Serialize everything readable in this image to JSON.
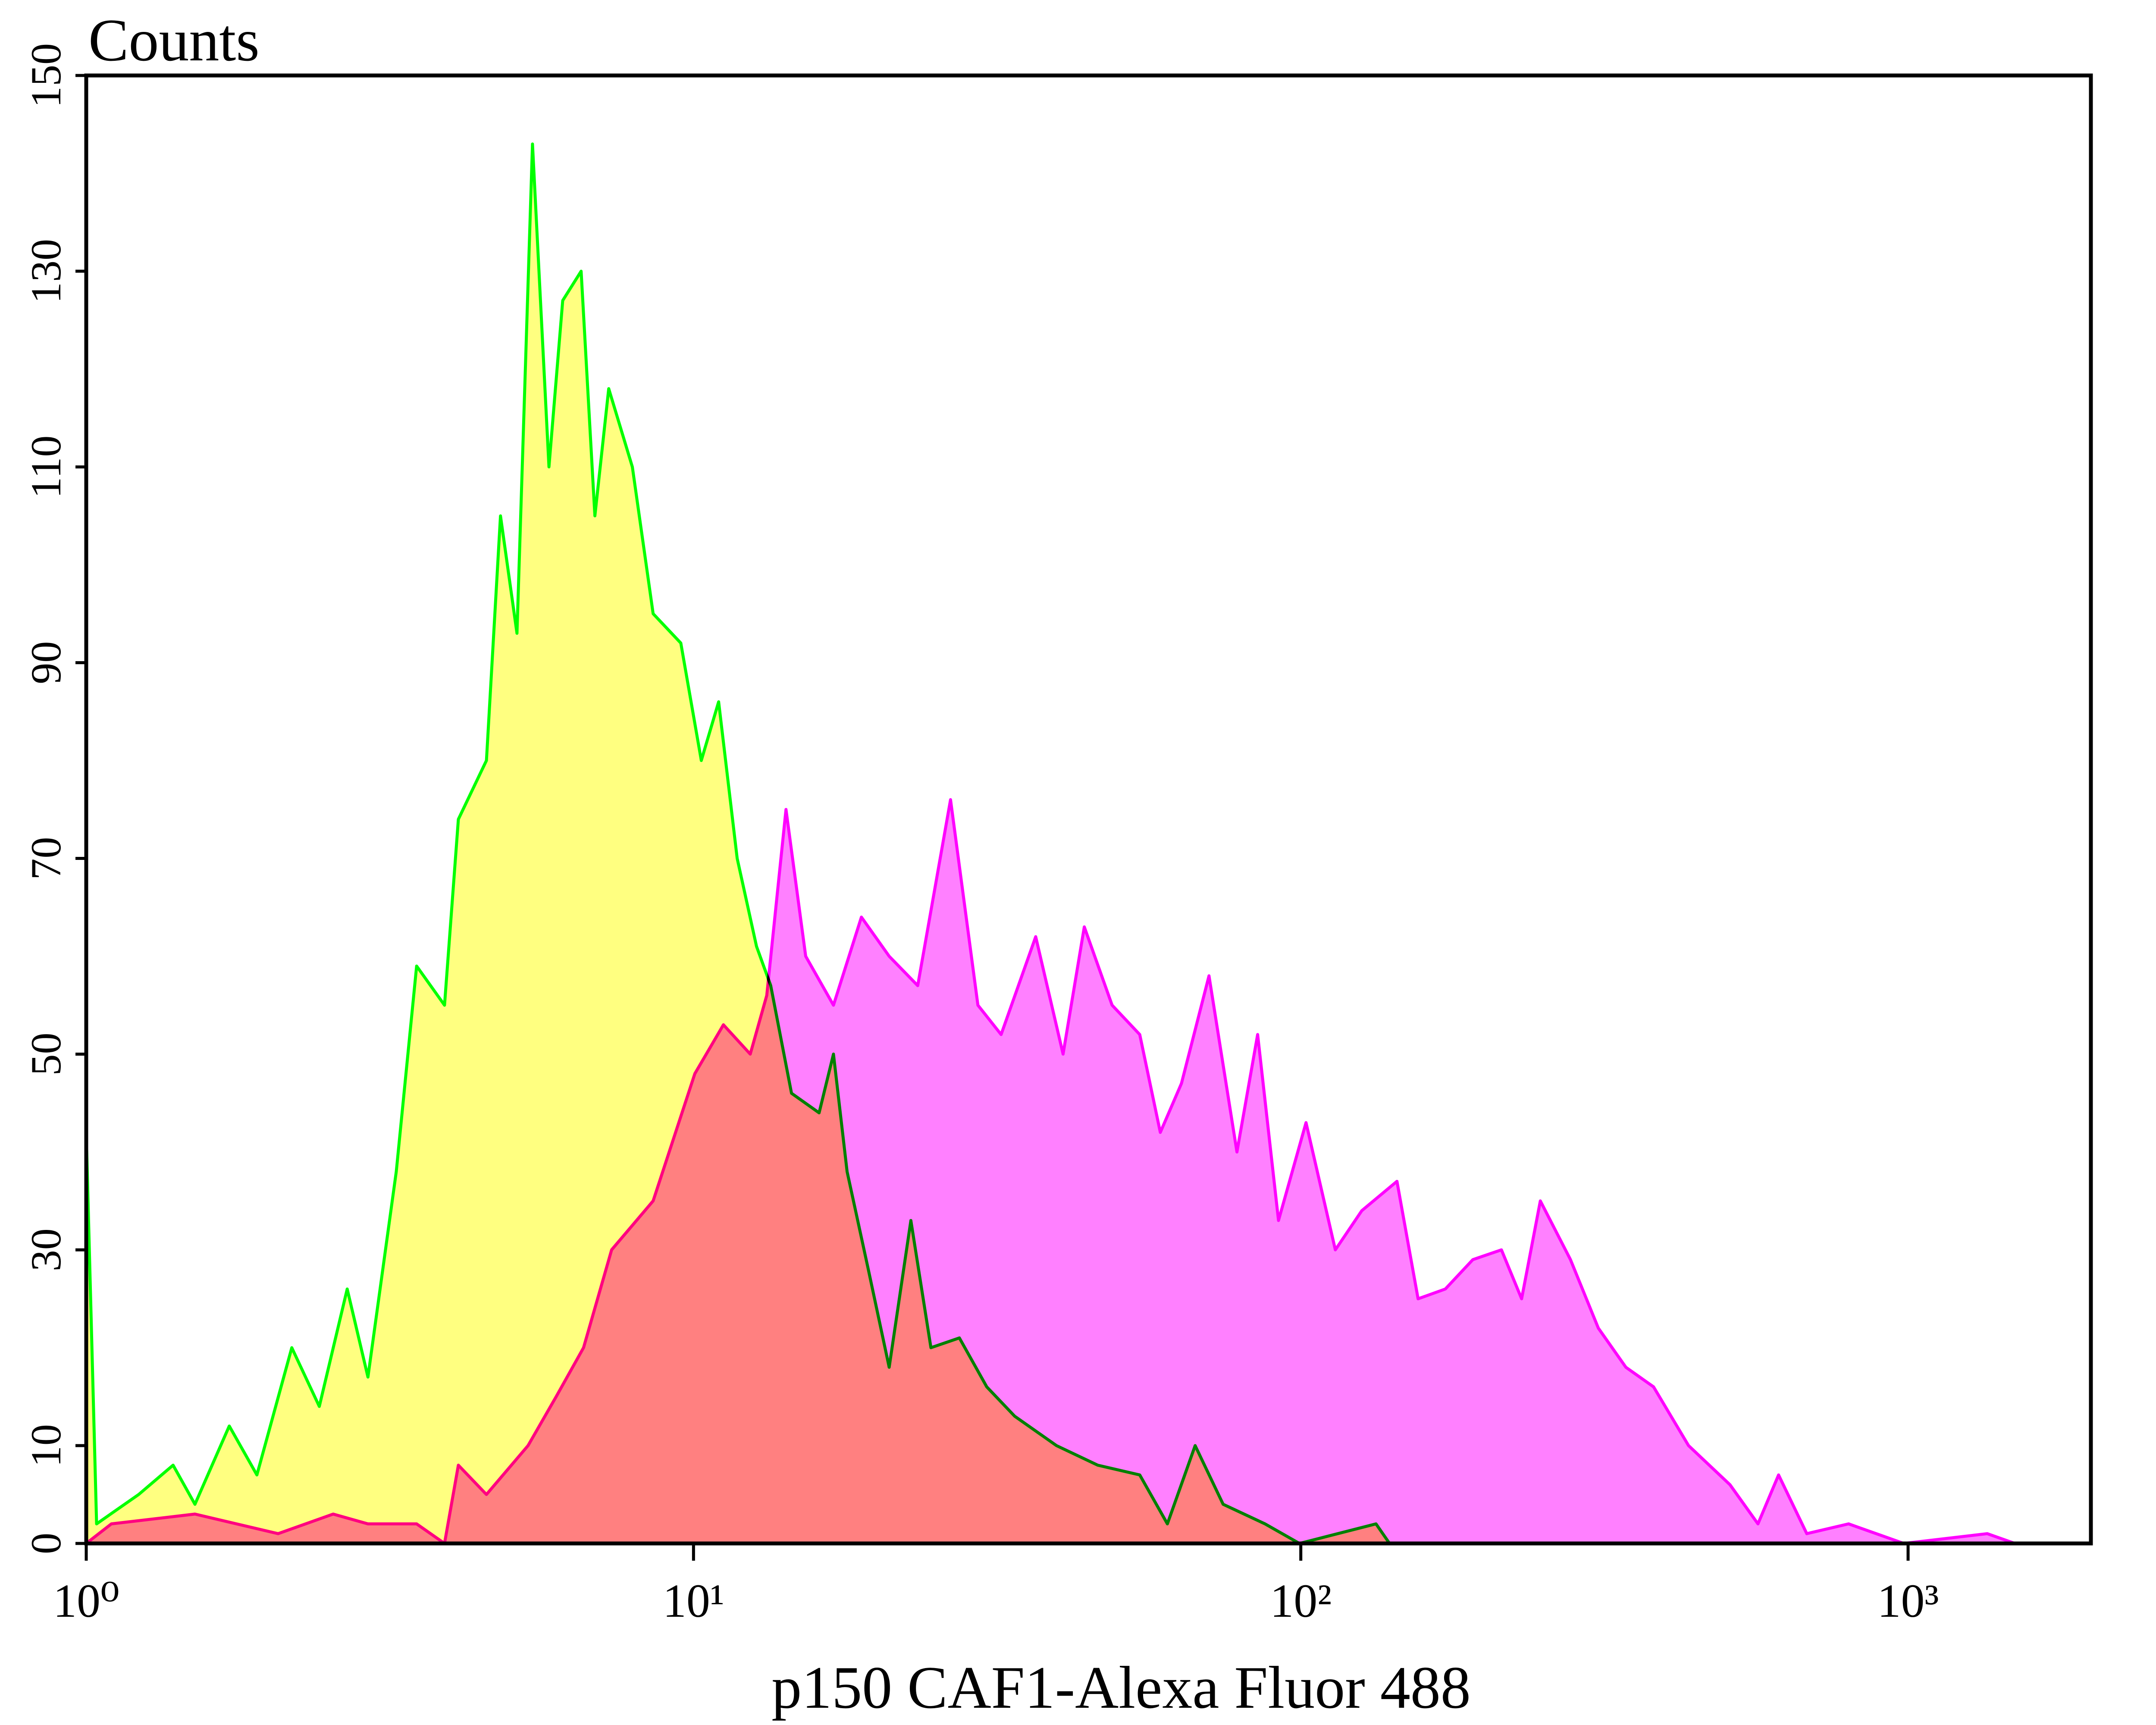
{
  "chart_data": {
    "type": "histogram-overlay",
    "ylabel": "Counts",
    "xlabel": "p150 CAF1-Alexa Fluor 488",
    "xscale": "log",
    "xlim": [
      1,
      2000
    ],
    "ylim": [
      0,
      150
    ],
    "xticks": [
      {
        "value": 1,
        "label": "10⁰"
      },
      {
        "value": 10,
        "label": "10¹"
      },
      {
        "value": 100,
        "label": "10²"
      },
      {
        "value": 1000,
        "label": "10³"
      }
    ],
    "yticks": [
      0,
      10,
      30,
      50,
      70,
      90,
      110,
      130,
      150
    ],
    "grid": false,
    "series": [
      {
        "color": "#00ff00",
        "fill": "#ffff80",
        "x": [
          1,
          1.04,
          1.22,
          1.39,
          1.51,
          1.72,
          1.91,
          2.18,
          2.42,
          2.69,
          2.91,
          3.24,
          3.5,
          3.89,
          4.1,
          4.56,
          4.81,
          5.12,
          5.43,
          5.78,
          6.09,
          6.53,
          6.88,
          7.25,
          7.93,
          8.58,
          9.53,
          10.3,
          11,
          11.8,
          12.7,
          13.4,
          14.5,
          16.1,
          17,
          17.9,
          19.4,
          21,
          22.8,
          24.6,
          27.4,
          30.4,
          33.8,
          39.6,
          46.3,
          54.3,
          60.3,
          67,
          74.5,
          87.3,
          99.5,
          133,
          140
        ],
        "values": [
          42,
          2,
          5,
          8,
          4,
          12,
          7,
          20,
          14,
          26,
          17,
          38,
          59,
          55,
          74,
          80,
          105,
          93,
          143,
          110,
          127,
          130,
          105,
          118,
          110,
          95,
          92,
          80,
          86,
          70,
          61,
          57,
          46,
          44,
          50,
          38,
          28,
          18,
          33,
          20,
          21,
          16,
          13,
          10,
          8,
          7,
          2,
          10,
          4,
          2,
          0,
          2,
          0
        ]
      },
      {
        "color": "#ff00ff",
        "fill": "#ff80ff",
        "x": [
          1,
          1.1,
          1.51,
          2.07,
          2.55,
          2.91,
          3.5,
          3.89,
          4.1,
          4.56,
          5.34,
          5.94,
          6.59,
          7.33,
          8.58,
          10.05,
          11.2,
          12.4,
          13.2,
          14.2,
          15.3,
          17,
          18.9,
          21,
          23.4,
          26.5,
          29.4,
          32.1,
          36.6,
          40.6,
          44,
          48.9,
          54.3,
          58.7,
          63.6,
          70.6,
          78.5,
          84.9,
          91.9,
          102,
          114,
          126,
          144,
          156,
          173,
          192,
          214,
          231,
          248,
          278,
          309,
          343,
          381,
          435,
          509,
          566,
          612,
          681,
          798,
          984,
          1350,
          1500
        ],
        "values": [
          0,
          2,
          3,
          1,
          3,
          2,
          2,
          0,
          8,
          5,
          10,
          15,
          20,
          30,
          35,
          48,
          53,
          50,
          56,
          75,
          60,
          55,
          64,
          60,
          57,
          76,
          55,
          52,
          62,
          50,
          63,
          55,
          52,
          42,
          47,
          58,
          40,
          52,
          33,
          43,
          30,
          34,
          37,
          25,
          26,
          29,
          30,
          25,
          35,
          29,
          22,
          18,
          16,
          10,
          6,
          2,
          7,
          1,
          2,
          0,
          1,
          0
        ]
      }
    ]
  }
}
